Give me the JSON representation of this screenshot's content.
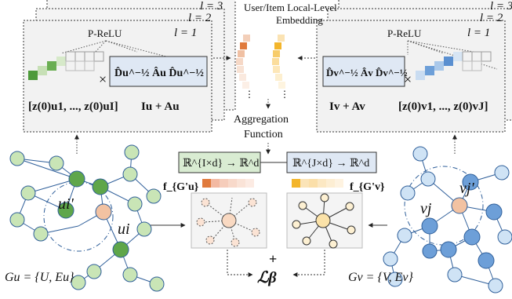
{
  "colors": {
    "user_node": "#c9e5b6",
    "user_node_dark": "#5fa64a",
    "item_node": "#cfe3f5",
    "item_node_dark": "#6d9fd8",
    "center_node": "#f2c2a2",
    "panel_bg": "#f2f2f2",
    "formula_bg": "#dfe8f4",
    "map_bg": "#d9ecd2"
  },
  "left_panel": {
    "layer_top": "l = 3",
    "layer_mid": "l = 2",
    "layer_front": "l = 1",
    "activation": "P-ReLU",
    "times": "×",
    "adjacency": "D̂u^−½ Âu D̂u^−½",
    "embeddings": "[z(0)u1, ..., z(0)uI]",
    "identity_plus_adj": "Iu + Au"
  },
  "right_panel": {
    "layer_top": "l = 3",
    "layer_mid": "l = 2",
    "layer_front": "l = 1",
    "activation": "P-ReLU",
    "times": "×",
    "adjacency": "D̂v^−½ Âv D̂v^−½",
    "embeddings": "[z(0)v1, ..., z(0)vJ]",
    "identity_plus_adj": "Iv + Av"
  },
  "center": {
    "embedding_label_line1": "User/Item  Local-Level",
    "embedding_label_line2": "Embedding",
    "aggregation_line1": "Aggregation",
    "aggregation_line2": "Function",
    "map_user": "ℝ^{I×d} → ℝ^d",
    "map_item": "ℝ^{J×d} → ℝ^d",
    "f_user": "f_{G'u}",
    "f_item": "f_{G'v}",
    "plus": "+",
    "loss": "ℒβ"
  },
  "left_graph": {
    "node_ui_neighbor": "ui'",
    "node_ui": "ui",
    "caption": "Gu = {U, Eu}"
  },
  "right_graph": {
    "node_vj": "vj",
    "node_vj_neighbor": "vj'",
    "caption": "Gv = {V, Ev}"
  }
}
